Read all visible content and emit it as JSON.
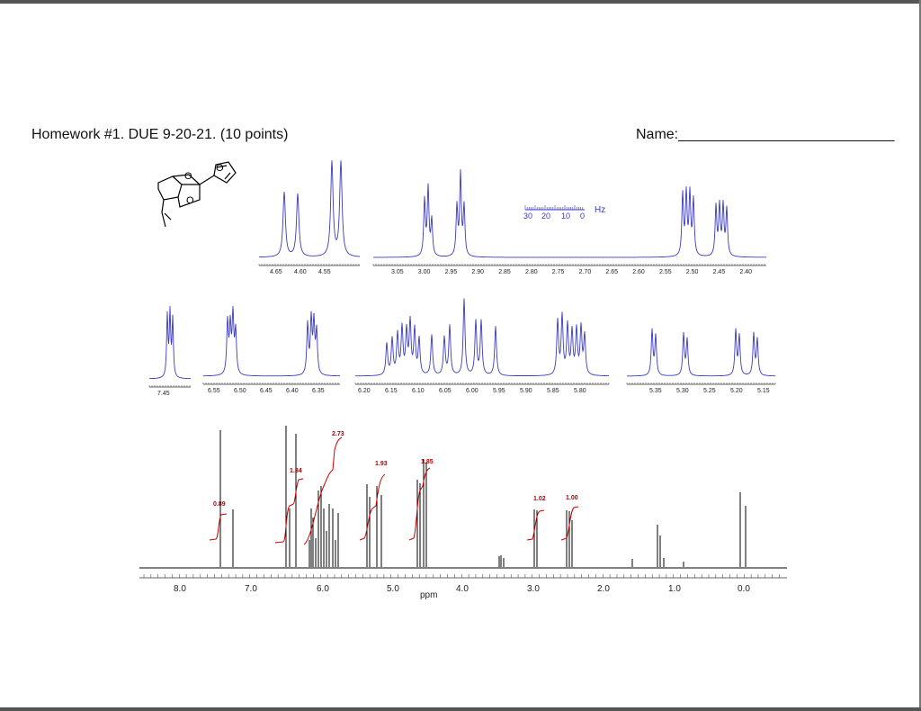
{
  "header": {
    "title": "Homework #1. DUE 9-20-21. (10 points)",
    "name_label": "Name:___________________________"
  },
  "colors": {
    "inset": "#3b3bc4",
    "main": "#000000",
    "integral": "#cc0000",
    "axis": "#333333"
  },
  "hz_scale": {
    "ticks": [
      "30",
      "20",
      "10",
      "0"
    ],
    "unit": "Hz"
  },
  "main_axis": {
    "label": "ppm",
    "ticks": [
      "8.0",
      "7.0",
      "6.0",
      "5.0",
      "4.0",
      "3.0",
      "2.0",
      "1.0",
      "0.0"
    ]
  },
  "integrals": [
    "0.89",
    "1.34",
    "2.73",
    "1.93",
    "1.85",
    "1.02",
    "1.00"
  ],
  "insets": {
    "i1": [
      "4.65",
      "4.60",
      "4.55"
    ],
    "i2": [
      "3.05",
      "3.00",
      "2.95",
      "2.90",
      "2.85",
      "2.80",
      "2.75",
      "2.70",
      "2.65",
      "2.60",
      "2.55",
      "2.50",
      "2.45",
      "2.40"
    ],
    "i3": [
      "7.45"
    ],
    "i4": [
      "6.55",
      "6.50",
      "6.45",
      "6.40",
      "6.35"
    ],
    "i5": [
      "6.20",
      "6.15",
      "6.10",
      "6.05",
      "6.00",
      "5.95",
      "5.90",
      "5.85",
      "5.80"
    ],
    "i6": [
      "5.35",
      "5.30",
      "5.25",
      "5.20",
      "5.15"
    ]
  },
  "molecule": {
    "atoms": [
      "O",
      "O",
      "O"
    ]
  }
}
